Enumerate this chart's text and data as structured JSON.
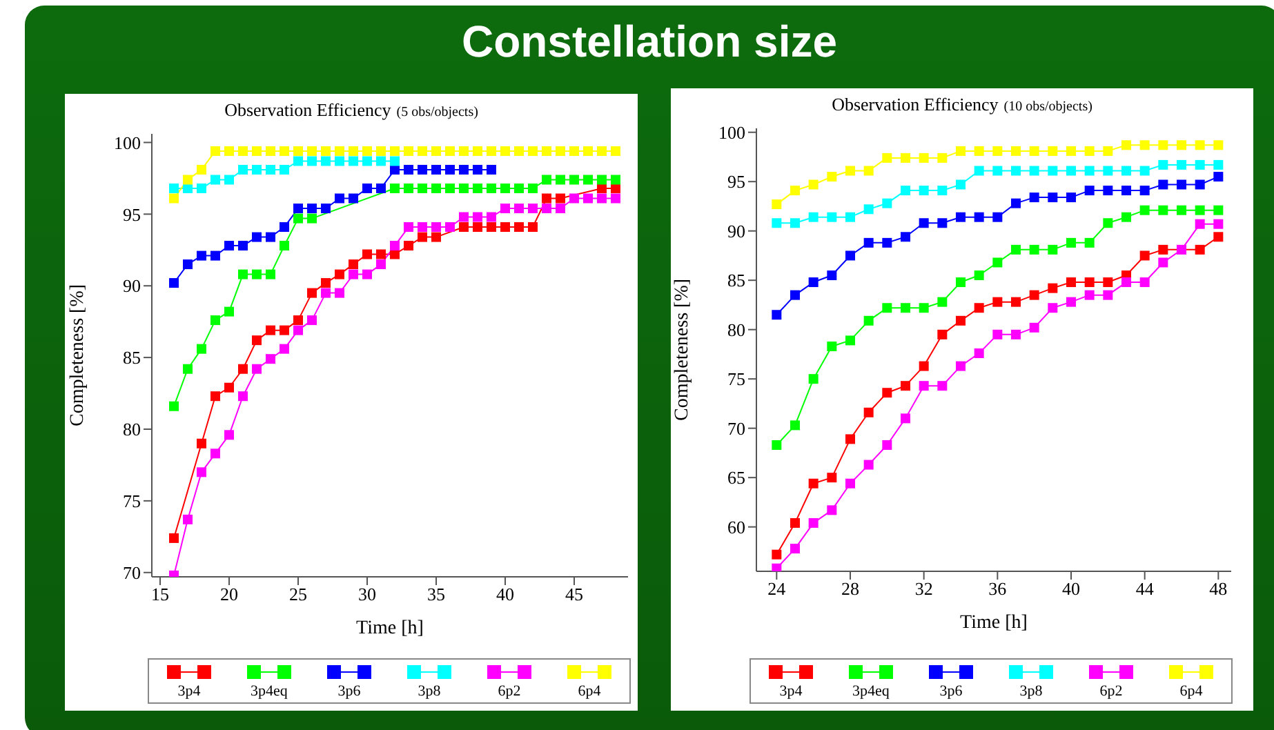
{
  "chart_data": [
    {
      "type": "line",
      "title": "Observation Efficiency",
      "subtitle": "(5 obs/objects)",
      "annotations": [
        "Constellation size"
      ],
      "xlabel": "Time [h]",
      "ylabel": "Completeness [%]",
      "x": [
        16,
        17,
        18,
        19,
        20,
        21,
        22,
        23,
        24,
        25,
        26,
        27,
        28,
        29,
        30,
        31,
        32,
        33,
        34,
        35,
        36,
        37,
        38,
        39,
        40,
        41,
        42,
        43,
        44,
        45,
        46,
        47,
        48
      ],
      "xlim": [
        14.4,
        48.9
      ],
      "xticks": [
        15,
        20,
        25,
        30,
        35,
        40,
        45
      ],
      "ylim": [
        69.7,
        100.6
      ],
      "yticks": [
        70,
        75,
        80,
        85,
        90,
        95,
        100
      ],
      "grid": false,
      "legend": "bottom",
      "marker": "square",
      "line_style": "solid",
      "series": [
        {
          "name": "3p4",
          "color": "#ff0000",
          "values": [
            72.4,
            null,
            79.0,
            82.3,
            82.9,
            84.2,
            86.2,
            86.9,
            86.9,
            87.6,
            89.5,
            90.2,
            90.8,
            91.5,
            92.2,
            92.2,
            92.2,
            92.8,
            93.4,
            93.4,
            null,
            94.1,
            94.1,
            94.1,
            94.1,
            94.1,
            94.1,
            96.1,
            96.1,
            null,
            null,
            96.8,
            96.8
          ]
        },
        {
          "name": "3p4eq",
          "color": "#00ff00",
          "values": [
            81.6,
            84.2,
            85.6,
            87.6,
            88.2,
            90.8,
            90.8,
            90.8,
            92.8,
            94.7,
            94.7,
            null,
            null,
            null,
            null,
            null,
            96.8,
            96.8,
            96.8,
            96.8,
            96.8,
            96.8,
            96.8,
            96.8,
            96.8,
            96.8,
            96.8,
            97.4,
            97.4,
            97.4,
            97.4,
            97.4,
            97.4
          ]
        },
        {
          "name": "3p6",
          "color": "#0000ff",
          "values": [
            90.2,
            91.5,
            92.1,
            92.1,
            92.8,
            92.8,
            93.4,
            93.4,
            94.1,
            95.4,
            95.4,
            95.4,
            96.1,
            96.1,
            96.8,
            96.8,
            98.1,
            98.1,
            98.1,
            98.1,
            98.1,
            98.1,
            98.1,
            98.1,
            null,
            null,
            null,
            null,
            null,
            null,
            null,
            null,
            null
          ]
        },
        {
          "name": "3p8",
          "color": "#00ffff",
          "values": [
            96.8,
            96.8,
            96.8,
            97.4,
            97.4,
            98.1,
            98.1,
            98.1,
            98.1,
            98.7,
            98.7,
            98.7,
            98.7,
            98.7,
            98.7,
            98.7,
            98.7,
            null,
            null,
            null,
            null,
            null,
            null,
            null,
            null,
            null,
            null,
            null,
            null,
            null,
            null,
            null,
            null
          ]
        },
        {
          "name": "6p2",
          "color": "#ff00ff",
          "values": [
            69.8,
            73.7,
            77.0,
            78.3,
            79.6,
            82.3,
            84.2,
            84.9,
            85.6,
            86.9,
            87.6,
            89.5,
            89.5,
            90.8,
            90.8,
            91.5,
            92.8,
            94.1,
            94.1,
            94.1,
            94.1,
            94.8,
            94.8,
            94.8,
            95.4,
            95.4,
            95.4,
            95.4,
            95.4,
            96.1,
            96.1,
            96.1,
            96.1
          ]
        },
        {
          "name": "6p4",
          "color": "#ffff00",
          "values": [
            96.1,
            97.4,
            98.1,
            99.4,
            99.4,
            99.4,
            99.4,
            99.4,
            99.4,
            99.4,
            99.4,
            99.4,
            99.4,
            99.4,
            99.4,
            99.4,
            99.4,
            99.4,
            99.4,
            99.4,
            99.4,
            99.4,
            99.4,
            99.4,
            99.4,
            99.4,
            99.4,
            99.4,
            99.4,
            99.4,
            99.4,
            99.4,
            99.4
          ]
        }
      ]
    },
    {
      "type": "line",
      "title": "Observation Efficiency",
      "subtitle": "(10 obs/objects)",
      "xlabel": "Time [h]",
      "ylabel": "Completeness [%]",
      "x": [
        24,
        25,
        26,
        27,
        28,
        29,
        30,
        31,
        32,
        33,
        34,
        35,
        36,
        37,
        38,
        39,
        40,
        41,
        42,
        43,
        44,
        45,
        46,
        47,
        48
      ],
      "xlim": [
        22.9,
        48.7
      ],
      "xticks": [
        24,
        28,
        32,
        36,
        40,
        44,
        48
      ],
      "ylim": [
        55.5,
        100.4
      ],
      "yticks": [
        60,
        65,
        70,
        75,
        80,
        85,
        90,
        95,
        100
      ],
      "grid": false,
      "legend": "bottom",
      "marker": "square",
      "line_style": "solid",
      "series": [
        {
          "name": "3p4",
          "color": "#ff0000",
          "values": [
            57.2,
            60.4,
            64.4,
            65.0,
            68.9,
            71.6,
            73.6,
            74.3,
            76.3,
            79.5,
            80.9,
            82.2,
            82.8,
            82.8,
            83.5,
            84.2,
            84.8,
            84.8,
            84.8,
            85.5,
            87.5,
            88.1,
            null,
            88.1,
            89.4
          ]
        },
        {
          "name": "3p4eq",
          "color": "#00ff00",
          "values": [
            68.3,
            70.3,
            75.0,
            78.3,
            78.9,
            80.9,
            82.2,
            82.2,
            82.2,
            82.8,
            84.8,
            85.5,
            86.8,
            88.1,
            88.1,
            88.1,
            88.8,
            88.8,
            90.8,
            91.4,
            92.1,
            92.1,
            92.1,
            92.1,
            92.1
          ]
        },
        {
          "name": "3p6",
          "color": "#0000ff",
          "values": [
            81.5,
            83.5,
            84.8,
            85.5,
            87.5,
            88.8,
            88.8,
            89.4,
            90.8,
            90.8,
            91.4,
            91.4,
            91.4,
            92.8,
            93.4,
            93.4,
            93.4,
            94.1,
            94.1,
            94.1,
            94.1,
            94.7,
            94.7,
            94.7,
            95.5
          ]
        },
        {
          "name": "3p8",
          "color": "#00ffff",
          "values": [
            90.8,
            90.8,
            91.4,
            91.4,
            91.4,
            92.2,
            92.8,
            94.1,
            94.1,
            94.1,
            94.7,
            96.1,
            96.1,
            96.1,
            96.1,
            96.1,
            96.1,
            96.1,
            96.1,
            96.1,
            96.1,
            96.7,
            96.7,
            96.7,
            96.7
          ]
        },
        {
          "name": "6p2",
          "color": "#ff00ff",
          "values": [
            55.8,
            57.8,
            60.4,
            61.7,
            64.4,
            66.3,
            68.3,
            71.0,
            74.3,
            74.3,
            76.3,
            77.6,
            79.5,
            79.5,
            80.2,
            82.2,
            82.8,
            83.5,
            83.5,
            84.8,
            84.8,
            86.8,
            88.1,
            90.7,
            90.7
          ]
        },
        {
          "name": "6p4",
          "color": "#ffff00",
          "values": [
            92.7,
            94.1,
            94.7,
            95.5,
            96.1,
            96.1,
            97.4,
            97.4,
            97.4,
            97.4,
            98.1,
            98.1,
            98.1,
            98.1,
            98.1,
            98.1,
            98.1,
            98.1,
            98.1,
            98.7,
            98.7,
            98.7,
            98.7,
            98.7,
            98.7
          ]
        }
      ]
    }
  ]
}
